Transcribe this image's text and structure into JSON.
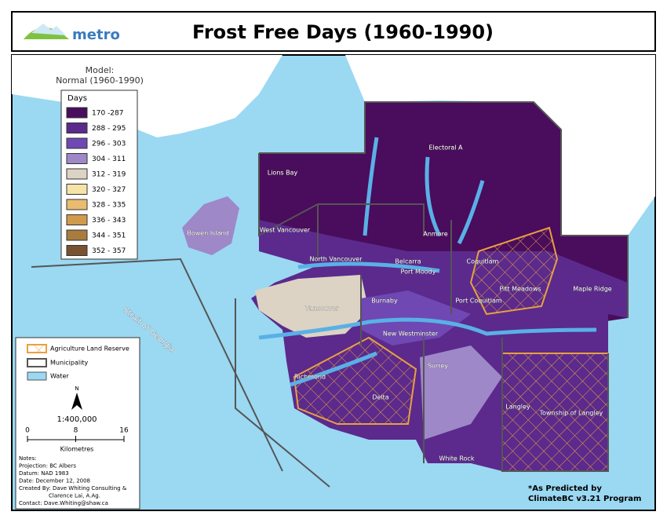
{
  "header": {
    "logo": "metro",
    "title": "Frost Free Days (1960-1990)"
  },
  "model": {
    "label": "Model:",
    "name": "Normal (1960-1990)"
  },
  "legend": {
    "title": "Days",
    "items": [
      {
        "label": "170 -287",
        "color": "#4a0c5c"
      },
      {
        "label": "288 - 295",
        "color": "#5b2a8c"
      },
      {
        "label": "296 - 303",
        "color": "#6f48b3"
      },
      {
        "label": "304 - 311",
        "color": "#9e88c8"
      },
      {
        "label": "312 - 319",
        "color": "#dcd3c4"
      },
      {
        "label": "320 - 327",
        "color": "#f6e3a8"
      },
      {
        "label": "328 - 335",
        "color": "#e9bc70"
      },
      {
        "label": "336 - 343",
        "color": "#d09b4d"
      },
      {
        "label": "344 - 351",
        "color": "#a87b3e"
      },
      {
        "label": "352 - 357",
        "color": "#7a5230"
      }
    ]
  },
  "places": [
    "Lions Bay",
    "Electoral A",
    "Bowen Island",
    "West Vancouver",
    "Anmore",
    "North Vancouver",
    "Belcarra",
    "Port Moody",
    "Coquitlam",
    "Pitt Meadows",
    "Maple Ridge",
    "Burnaby",
    "Port Coquitlam",
    "Vancouver",
    "New Westminster",
    "Richmond",
    "Surrey",
    "Delta",
    "Langley",
    "Township of Langley",
    "White Rock",
    "Strait of Georgia"
  ],
  "map_legend": [
    "Agriculture Land Reserve",
    "Municipality",
    "Water"
  ],
  "scale": {
    "north": "N",
    "ratio": "1:400,000",
    "ticks": [
      0,
      8,
      16
    ],
    "unit": "Kilometres"
  },
  "notes": [
    "Notes:",
    "Projection: BC Albers",
    "Datum: NAD 1983",
    "Date: December 12, 2008",
    "Created By:  Dave Whiting Consulting &",
    "Clarence Lai, A.Ag.",
    "Contact: Dave.Whiting@shaw.ca"
  ],
  "credit": [
    "*As Predicted by",
    "ClimateBC v3.21 Program"
  ]
}
